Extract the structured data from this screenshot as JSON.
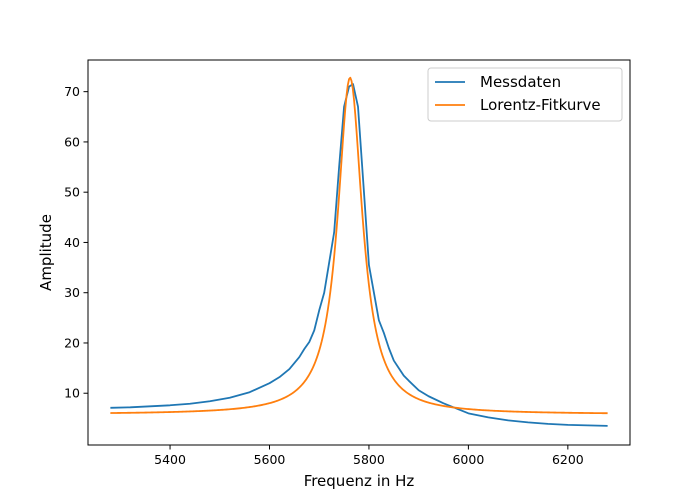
{
  "chart_data": {
    "type": "line",
    "title": "",
    "xlabel": "Frequenz in Hz",
    "ylabel": "Amplitude",
    "xlim": [
      5235,
      6325
    ],
    "ylim": [
      -0.3,
      76.3
    ],
    "x_ticks": [
      5400,
      5600,
      5800,
      6000,
      6200
    ],
    "y_ticks": [
      10,
      20,
      30,
      40,
      50,
      60,
      70
    ],
    "grid": false,
    "legend_position": "top-right",
    "series": [
      {
        "name": "Messdaten",
        "color": "#1f77b4",
        "points": [
          [
            5280,
            7.1
          ],
          [
            5320,
            7.2
          ],
          [
            5360,
            7.4
          ],
          [
            5400,
            7.6
          ],
          [
            5440,
            7.9
          ],
          [
            5480,
            8.4
          ],
          [
            5520,
            9.1
          ],
          [
            5560,
            10.2
          ],
          [
            5600,
            12.0
          ],
          [
            5620,
            13.2
          ],
          [
            5640,
            14.8
          ],
          [
            5650,
            16.0
          ],
          [
            5660,
            17.2
          ],
          [
            5670,
            18.8
          ],
          [
            5680,
            20.2
          ],
          [
            5690,
            22.5
          ],
          [
            5700,
            26.5
          ],
          [
            5710,
            30.0
          ],
          [
            5720,
            36.0
          ],
          [
            5730,
            42.0
          ],
          [
            5740,
            55.0
          ],
          [
            5750,
            67.0
          ],
          [
            5760,
            71.0
          ],
          [
            5768,
            71.5
          ],
          [
            5778,
            67.0
          ],
          [
            5790,
            50.0
          ],
          [
            5800,
            35.5
          ],
          [
            5810,
            30.0
          ],
          [
            5820,
            24.5
          ],
          [
            5830,
            22.0
          ],
          [
            5840,
            19.0
          ],
          [
            5850,
            16.5
          ],
          [
            5860,
            15.0
          ],
          [
            5870,
            13.5
          ],
          [
            5880,
            12.5
          ],
          [
            5900,
            10.6
          ],
          [
            5920,
            9.4
          ],
          [
            5950,
            8.0
          ],
          [
            5980,
            6.8
          ],
          [
            6000,
            6.0
          ],
          [
            6040,
            5.2
          ],
          [
            6080,
            4.6
          ],
          [
            6120,
            4.2
          ],
          [
            6160,
            3.9
          ],
          [
            6200,
            3.7
          ],
          [
            6240,
            3.6
          ],
          [
            6280,
            3.5
          ]
        ]
      },
      {
        "name": "Lorentz-Fitkurve",
        "color": "#ff7f0e",
        "function": "lorentz",
        "params": {
          "x0": 5762,
          "gamma": 30,
          "amplitude": 67,
          "offset": 5.8
        },
        "x_range": [
          5280,
          6280
        ],
        "samples": 400
      }
    ]
  }
}
